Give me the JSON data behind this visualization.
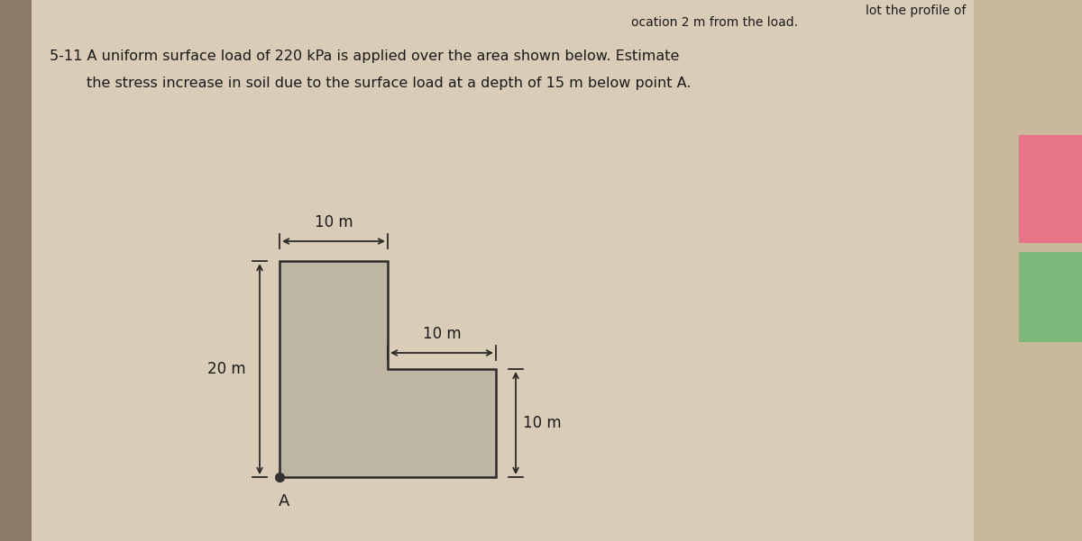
{
  "background_color": "#c8b99a",
  "page_color": "#d9cdb8",
  "shape_color": "#bfb5a3",
  "shape_edge_color": "#2a2a2a",
  "text_color": "#1a1a1a",
  "title_line1": "5-11 A uniform surface load of 220 kPa is applied over the area shown below. Estimate",
  "title_line2": "        the stress increase in soil due to the surface load at a depth of 15 m below point A.",
  "partial_top_text1": "ocation 2 m from the load.",
  "partial_top_text2": "lot the profile of",
  "dim_top_width": "10 m",
  "dim_left_height": "20 m",
  "dim_right_width": "10 m",
  "dim_right_height": "10 m",
  "point_label": "A",
  "fig_width": 12.0,
  "fig_height": 6.01,
  "dpi": 100
}
